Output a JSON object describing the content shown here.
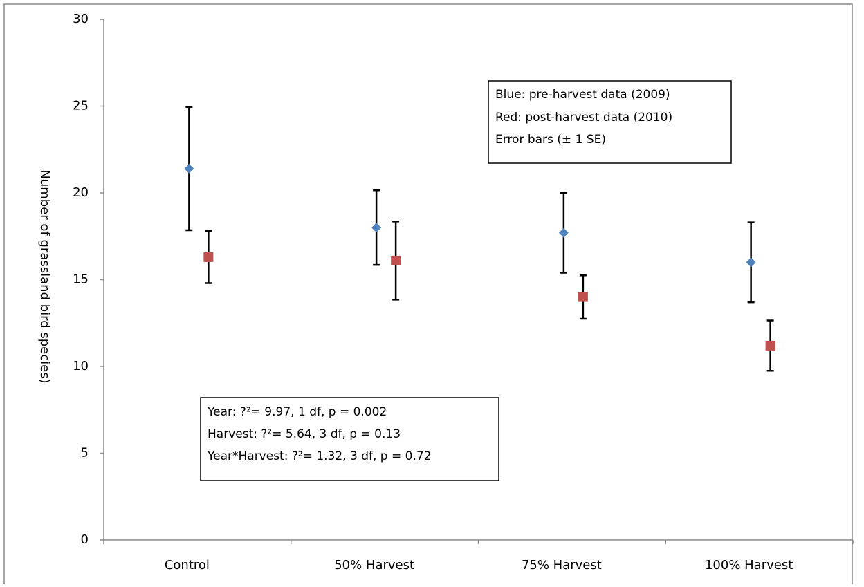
{
  "chart_data": {
    "type": "point",
    "y_label": "Number of grassland bird species)",
    "categories": [
      "Control",
      "50% Harvest",
      "75% Harvest",
      "100% Harvest"
    ],
    "series": [
      {
        "name": "pre-harvest",
        "color": "#4f81bd",
        "marker": "diamond",
        "values": [
          21.4,
          18.0,
          17.7,
          16.0
        ],
        "errors": [
          3.55,
          2.15,
          2.3,
          2.3
        ]
      },
      {
        "name": "post-harvest",
        "color": "#c0504d",
        "marker": "square",
        "values": [
          16.3,
          16.1,
          14.0,
          11.2
        ],
        "errors": [
          1.5,
          2.25,
          1.25,
          1.45
        ]
      }
    ],
    "ylim": [
      0,
      30
    ],
    "yticks": [
      0,
      5,
      10,
      15,
      20,
      25,
      30
    ],
    "grid": false,
    "annotations": [
      {
        "lines": [
          "Blue: pre-harvest data (2009)",
          "Red: post-harvest data (2010)",
          "Error bars (± 1 SE)"
        ]
      },
      {
        "lines": [
          "Year: ?²= 9.97, 1 df, p = 0.002",
          "Harvest: ?²= 5.64, 3 df, p = 0.13",
          "Year*Harvest: ?²= 1.32, 3 df, p = 0.72"
        ]
      }
    ]
  }
}
